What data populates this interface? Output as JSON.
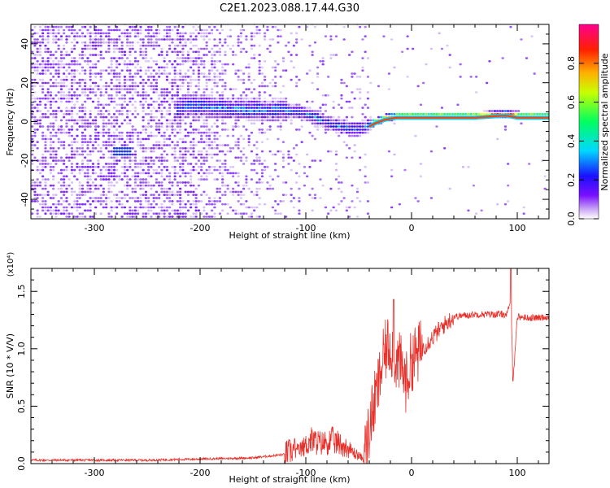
{
  "title": "C2E1.2023.088.17.44.G30",
  "chart_data": [
    {
      "type": "heatmap",
      "xlabel": "Height of straight line (km)",
      "ylabel": "Frequency (Hz)",
      "xlim": [
        -360,
        130
      ],
      "ylim": [
        -50,
        50
      ],
      "xticks": [
        -300,
        -200,
        -100,
        0,
        100
      ],
      "yticks": [
        -40,
        -20,
        0,
        20,
        40
      ],
      "colorbar": {
        "label": "Normalized spectral amplitude",
        "range": [
          0,
          1
        ],
        "ticks": [
          "0.0",
          "0.2",
          "0.4",
          "0.6",
          "0.8"
        ],
        "colors": [
          "#ffffff",
          "#b080f0",
          "#6a00ff",
          "#0000ff",
          "#00e0ff",
          "#00ff40",
          "#ffff00",
          "#ff8000",
          "#ff0000",
          "#ff0090"
        ]
      },
      "ridge": {
        "x": [
          -360,
          -300,
          -250,
          -215,
          -200,
          -180,
          -160,
          -140,
          -120,
          -100,
          -80,
          -65,
          -55,
          -45,
          -35,
          -25,
          -15,
          0,
          30,
          60,
          85,
          90,
          100,
          130
        ],
        "y": [
          -2,
          -5,
          -3,
          7,
          7,
          6,
          5,
          5,
          5,
          3,
          -2,
          -4,
          -5,
          -4,
          -1,
          1,
          2,
          2,
          2,
          2,
          3,
          3,
          2,
          2
        ]
      }
    },
    {
      "type": "line",
      "xlabel": "Height of straight line (km)",
      "ylabel": "SNR (10 * V/V)",
      "yscale_note": "(x10⁴)",
      "xlim": [
        -360,
        130
      ],
      "ylim": [
        0,
        1.7
      ],
      "xticks": [
        -300,
        -200,
        -100,
        0,
        100
      ],
      "yticks": [
        "0.0",
        "0.5",
        "1.0",
        "1.5"
      ],
      "series": [
        {
          "color": "#e8302a",
          "x": [
            -360,
            -300,
            -250,
            -200,
            -150,
            -120,
            -105,
            -95,
            -85,
            -75,
            -65,
            -55,
            -45,
            -38,
            -32,
            -28,
            -24,
            -20,
            -17,
            -14,
            -10,
            -5,
            0,
            10,
            20,
            30,
            40,
            60,
            80,
            90,
            94,
            96,
            100,
            110,
            120,
            130
          ],
          "y": [
            0.03,
            0.03,
            0.03,
            0.04,
            0.05,
            0.08,
            0.15,
            0.25,
            0.22,
            0.25,
            0.2,
            0.12,
            0.05,
            0.4,
            0.65,
            0.85,
            1.0,
            1.05,
            0.95,
            0.9,
            0.85,
            0.7,
            0.9,
            1.0,
            1.1,
            1.2,
            1.28,
            1.3,
            1.3,
            1.3,
            1.4,
            0.72,
            1.28,
            1.27,
            1.27,
            1.28
          ]
        }
      ]
    }
  ]
}
